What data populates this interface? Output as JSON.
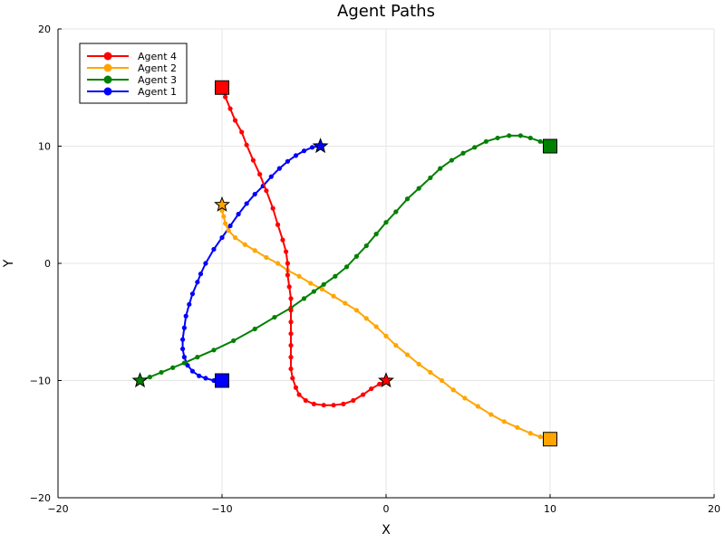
{
  "chart_data": {
    "type": "line",
    "title": "Agent Paths",
    "xlabel": "X",
    "ylabel": "Y",
    "xlim": [
      -20,
      20
    ],
    "ylim": [
      -20,
      20
    ],
    "xticks": [
      -20,
      -10,
      0,
      10,
      20
    ],
    "yticks": [
      -20,
      -10,
      0,
      10,
      20
    ],
    "xtick_labels": [
      "−20",
      "−10",
      "0",
      "10",
      "20"
    ],
    "ytick_labels": [
      "−20",
      "−10",
      "0",
      "10",
      "20"
    ],
    "grid": true,
    "legend_position": "top-left",
    "legend_order": [
      "Agent 4",
      "Agent 2",
      "Agent 3",
      "Agent 1"
    ],
    "series": [
      {
        "name": "Agent 1",
        "color": "#0000ff",
        "start_marker": "star",
        "end_marker": "square",
        "points": [
          [
            -4.0,
            10.0
          ],
          [
            -4.5,
            9.9
          ],
          [
            -5.0,
            9.6
          ],
          [
            -5.5,
            9.2
          ],
          [
            -6.0,
            8.7
          ],
          [
            -6.5,
            8.1
          ],
          [
            -7.0,
            7.4
          ],
          [
            -7.5,
            6.6
          ],
          [
            -8.0,
            5.9
          ],
          [
            -8.5,
            5.1
          ],
          [
            -9.0,
            4.2
          ],
          [
            -9.5,
            3.2
          ],
          [
            -10.0,
            2.2
          ],
          [
            -10.5,
            1.2
          ],
          [
            -11.0,
            0.0
          ],
          [
            -11.3,
            -0.9
          ],
          [
            -11.5,
            -1.6
          ],
          [
            -11.8,
            -2.6
          ],
          [
            -12.0,
            -3.5
          ],
          [
            -12.2,
            -4.5
          ],
          [
            -12.3,
            -5.5
          ],
          [
            -12.4,
            -6.5
          ],
          [
            -12.4,
            -7.3
          ],
          [
            -12.3,
            -8.0
          ],
          [
            -12.1,
            -8.7
          ],
          [
            -11.8,
            -9.2
          ],
          [
            -11.4,
            -9.6
          ],
          [
            -11.0,
            -9.8
          ],
          [
            -10.5,
            -10.0
          ],
          [
            -10.0,
            -10.0
          ]
        ]
      },
      {
        "name": "Agent 2",
        "color": "#ffa500",
        "start_marker": "star",
        "end_marker": "square",
        "points": [
          [
            -10.0,
            5.0
          ],
          [
            -10.0,
            4.5
          ],
          [
            -9.9,
            4.0
          ],
          [
            -9.8,
            3.4
          ],
          [
            -9.6,
            2.8
          ],
          [
            -9.2,
            2.2
          ],
          [
            -8.6,
            1.6
          ],
          [
            -8.0,
            1.1
          ],
          [
            -7.3,
            0.5
          ],
          [
            -6.6,
            0.0
          ],
          [
            -6.0,
            -0.6
          ],
          [
            -5.3,
            -1.1
          ],
          [
            -4.6,
            -1.7
          ],
          [
            -3.9,
            -2.2
          ],
          [
            -3.2,
            -2.8
          ],
          [
            -2.5,
            -3.4
          ],
          [
            -1.8,
            -4.0
          ],
          [
            -1.2,
            -4.7
          ],
          [
            -0.6,
            -5.4
          ],
          [
            0.0,
            -6.2
          ],
          [
            0.6,
            -7.0
          ],
          [
            1.3,
            -7.8
          ],
          [
            2.0,
            -8.6
          ],
          [
            2.7,
            -9.3
          ],
          [
            3.4,
            -10.0
          ],
          [
            4.1,
            -10.8
          ],
          [
            4.8,
            -11.5
          ],
          [
            5.6,
            -12.2
          ],
          [
            6.4,
            -12.9
          ],
          [
            7.2,
            -13.5
          ],
          [
            8.0,
            -14.0
          ],
          [
            8.8,
            -14.5
          ],
          [
            9.4,
            -14.8
          ],
          [
            10.0,
            -15.0
          ]
        ]
      },
      {
        "name": "Agent 3",
        "color": "#008000",
        "start_marker": "star",
        "end_marker": "square",
        "points": [
          [
            -15.0,
            -10.0
          ],
          [
            -14.4,
            -9.7
          ],
          [
            -13.7,
            -9.3
          ],
          [
            -13.0,
            -8.9
          ],
          [
            -12.3,
            -8.5
          ],
          [
            -11.5,
            -8.0
          ],
          [
            -10.5,
            -7.4
          ],
          [
            -9.3,
            -6.6
          ],
          [
            -8.0,
            -5.6
          ],
          [
            -6.8,
            -4.6
          ],
          [
            -5.8,
            -3.8
          ],
          [
            -5.0,
            -3.0
          ],
          [
            -4.4,
            -2.4
          ],
          [
            -3.8,
            -1.8
          ],
          [
            -3.1,
            -1.1
          ],
          [
            -2.4,
            -0.3
          ],
          [
            -1.8,
            0.6
          ],
          [
            -1.2,
            1.5
          ],
          [
            -0.6,
            2.5
          ],
          [
            0.0,
            3.5
          ],
          [
            0.6,
            4.4
          ],
          [
            1.3,
            5.5
          ],
          [
            2.0,
            6.4
          ],
          [
            2.7,
            7.3
          ],
          [
            3.3,
            8.1
          ],
          [
            4.0,
            8.8
          ],
          [
            4.7,
            9.4
          ],
          [
            5.4,
            9.9
          ],
          [
            6.1,
            10.4
          ],
          [
            6.8,
            10.7
          ],
          [
            7.5,
            10.9
          ],
          [
            8.2,
            10.9
          ],
          [
            8.8,
            10.7
          ],
          [
            9.4,
            10.4
          ],
          [
            10.0,
            10.0
          ]
        ]
      },
      {
        "name": "Agent 4",
        "color": "#ff0000",
        "start_marker": "star",
        "end_marker": "square",
        "points": [
          [
            0.0,
            -10.0
          ],
          [
            -0.4,
            -10.3
          ],
          [
            -0.9,
            -10.7
          ],
          [
            -1.4,
            -11.2
          ],
          [
            -2.0,
            -11.7
          ],
          [
            -2.6,
            -12.0
          ],
          [
            -3.2,
            -12.1
          ],
          [
            -3.8,
            -12.1
          ],
          [
            -4.4,
            -12.0
          ],
          [
            -4.9,
            -11.7
          ],
          [
            -5.3,
            -11.2
          ],
          [
            -5.5,
            -10.6
          ],
          [
            -5.7,
            -9.8
          ],
          [
            -5.8,
            -9.0
          ],
          [
            -5.8,
            -8.0
          ],
          [
            -5.8,
            -7.0
          ],
          [
            -5.8,
            -6.0
          ],
          [
            -5.8,
            -5.0
          ],
          [
            -5.8,
            -4.0
          ],
          [
            -5.8,
            -3.0
          ],
          [
            -5.9,
            -2.0
          ],
          [
            -6.0,
            -1.0
          ],
          [
            -6.0,
            0.0
          ],
          [
            -6.1,
            1.0
          ],
          [
            -6.3,
            2.0
          ],
          [
            -6.6,
            3.3
          ],
          [
            -6.9,
            4.7
          ],
          [
            -7.3,
            6.2
          ],
          [
            -7.7,
            7.6
          ],
          [
            -8.1,
            8.8
          ],
          [
            -8.5,
            10.1
          ],
          [
            -8.8,
            11.2
          ],
          [
            -9.2,
            12.2
          ],
          [
            -9.5,
            13.2
          ],
          [
            -9.8,
            14.2
          ],
          [
            -10.0,
            15.0
          ]
        ]
      }
    ]
  }
}
